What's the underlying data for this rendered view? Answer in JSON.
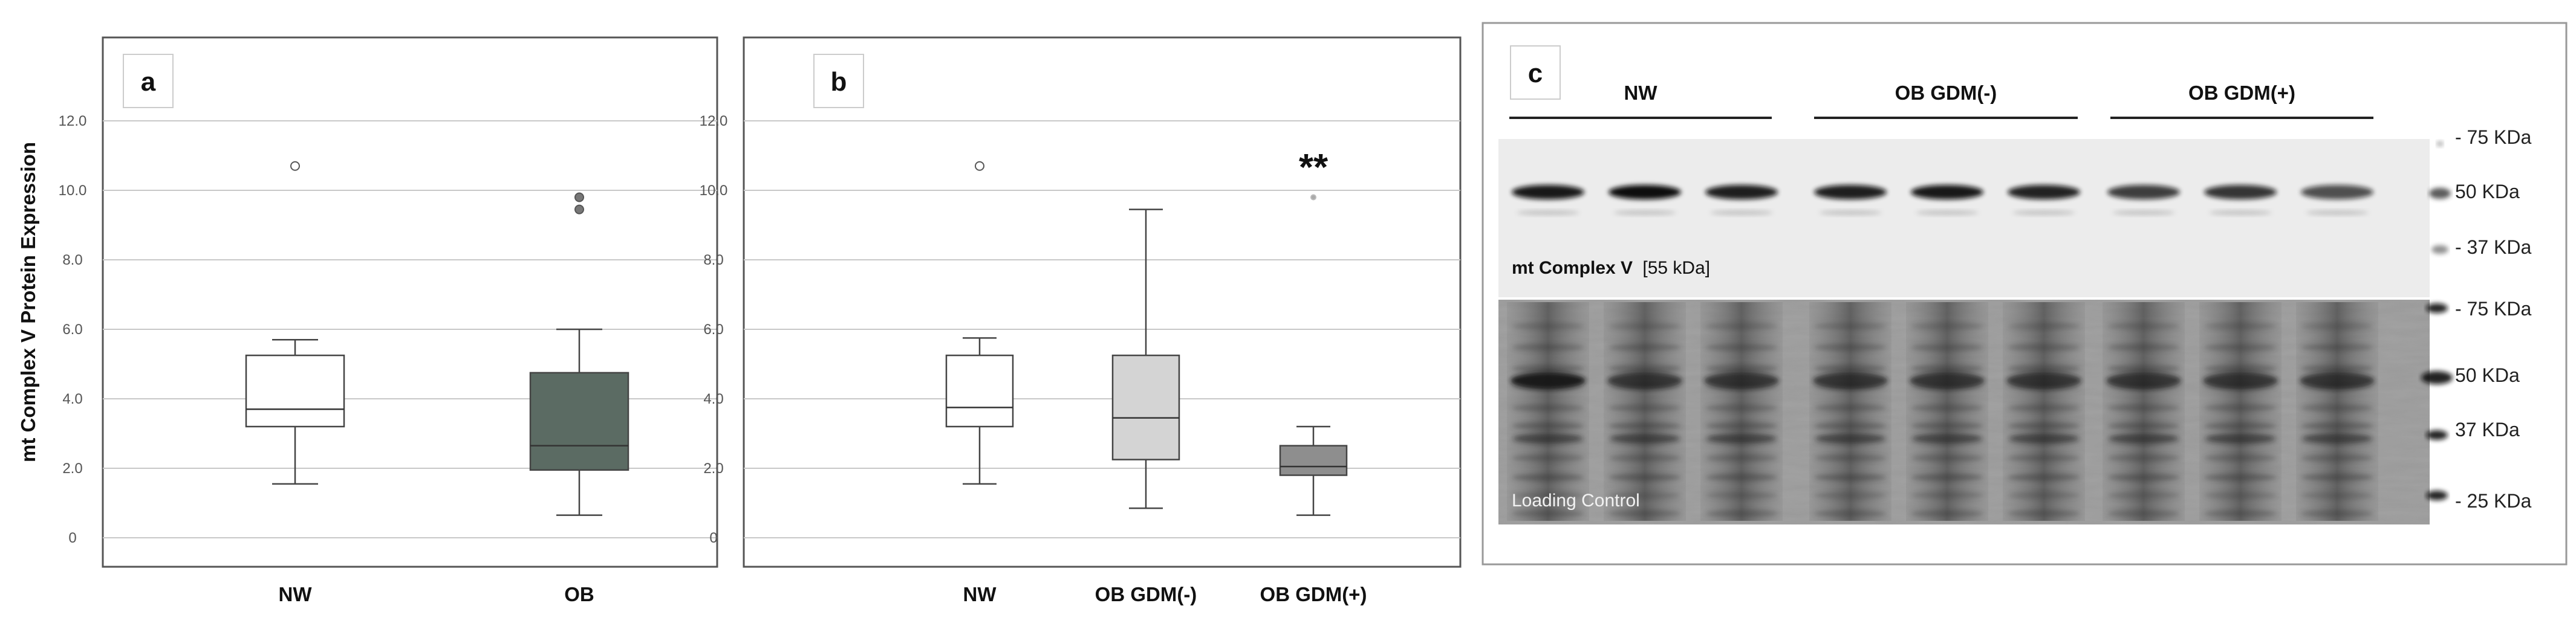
{
  "y_axis_label": "mt Complex V Protein Expression",
  "chart_data": [
    {
      "type": "box",
      "panel": "a",
      "ylim": [
        -0.8,
        13.4
      ],
      "yticks": [
        "0",
        "2.0",
        "4.0",
        "6.0",
        "8.0",
        "10.0",
        "12.0"
      ],
      "grid": true,
      "categories": [
        "NW",
        "OB"
      ],
      "boxes": [
        {
          "label": "NW",
          "whisker_low": 1.55,
          "q1": 3.2,
          "median": 3.7,
          "q3": 5.25,
          "whisker_high": 5.7,
          "outliers": [
            10.7
          ],
          "color": "#ffffff"
        },
        {
          "label": "OB",
          "whisker_low": 0.65,
          "q1": 1.95,
          "median": 2.65,
          "q3": 4.75,
          "whisker_high": 6.0,
          "outliers": [
            9.8,
            9.45
          ],
          "color": "#5b6b63"
        }
      ]
    },
    {
      "type": "box",
      "panel": "b",
      "ylim": [
        -0.8,
        13.4
      ],
      "yticks": [
        "0",
        "2.0",
        "4.0",
        "6.0",
        "8.0",
        "10.0",
        "12.0"
      ],
      "grid": true,
      "categories": [
        "NW",
        "OB GDM(-)",
        "OB GDM(+)"
      ],
      "significance": "**",
      "boxes": [
        {
          "label": "NW",
          "whisker_low": 1.55,
          "q1": 3.2,
          "median": 3.75,
          "q3": 5.25,
          "whisker_high": 5.75,
          "outliers": [
            10.7
          ],
          "color": "#ffffff"
        },
        {
          "label": "OB GDM(-)",
          "whisker_low": 0.85,
          "q1": 2.25,
          "median": 3.45,
          "q3": 5.25,
          "whisker_high": 9.45,
          "outliers": [],
          "color": "#d4d4d4"
        },
        {
          "label": "OB GDM(+)",
          "whisker_low": 0.65,
          "q1": 1.8,
          "median": 2.05,
          "q3": 2.65,
          "whisker_high": 3.2,
          "outliers": [
            9.8
          ],
          "color": "#8e8e8e"
        }
      ]
    }
  ],
  "blot": {
    "panel": "c",
    "groups": [
      "NW",
      "OB GDM(-)",
      "OB GDM(+)"
    ],
    "top_caption_bold": "mt Complex V",
    "top_caption_rest": "[55 kDa]",
    "bottom_caption": "Loading Control",
    "top_markers": [
      "- 75 KDa",
      "50 KDa",
      "- 37 KDa"
    ],
    "bottom_markers": [
      "- 75 KDa",
      "50 KDa",
      "37 KDa",
      "- 25 KDa"
    ]
  }
}
